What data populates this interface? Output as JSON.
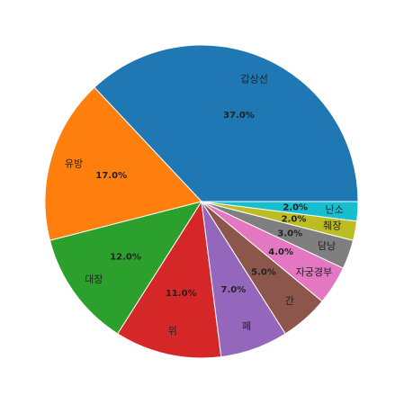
{
  "chart_data": {
    "type": "pie",
    "categories": [
      "갑상선",
      "유방",
      "대장",
      "위",
      "폐",
      "간",
      "자궁경부",
      "담낭",
      "췌장",
      "난소"
    ],
    "values": [
      37,
      17,
      12,
      11,
      7,
      5,
      4,
      3,
      2,
      2
    ],
    "value_labels": [
      "37.0%",
      "17.0%",
      "12.0%",
      "11.0%",
      "7.0%",
      "5.0%",
      "4.0%",
      "3.0%",
      "2.0%",
      "2.0%"
    ],
    "colors": [
      "#1f77b4",
      "#ff7f0e",
      "#2ca02c",
      "#d62728",
      "#9467bd",
      "#8c564b",
      "#e377c2",
      "#7f7f7f",
      "#bcbd22",
      "#17becf"
    ]
  }
}
